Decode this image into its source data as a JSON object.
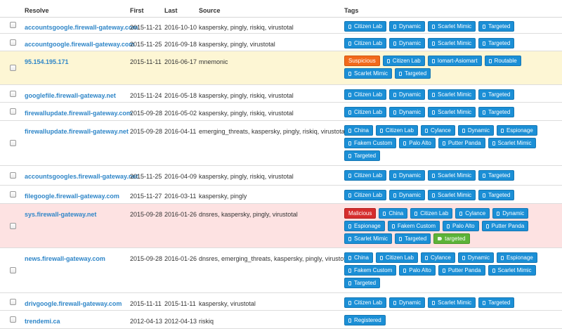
{
  "columns": {
    "resolve": "Resolve",
    "first": "First",
    "last": "Last",
    "source": "Source",
    "tags": "Tags"
  },
  "colors": {
    "tag_blue": "#1b8fd6",
    "malicious": "#d62d2d",
    "suspicious": "#f26a1b",
    "green_tag": "#5cb338",
    "link": "#2f86c8",
    "yellow_row": "#fdf6d4",
    "red_row": "#fde2e2"
  },
  "rows": [
    {
      "resolve": "accountsgoogle.firewall-gateway.com",
      "first": "2015-11-21",
      "last": "2016-10-10",
      "source": "kaspersky, pingly, riskiq, virustotal",
      "highlight": "",
      "tags": [
        {
          "label": "Citizen Lab",
          "kind": "blue"
        },
        {
          "label": "Dynamic",
          "kind": "blue"
        },
        {
          "label": "Scarlet Mimic",
          "kind": "blue"
        },
        {
          "label": "Targeted",
          "kind": "blue"
        }
      ]
    },
    {
      "resolve": "accountgoogle.firewall-gateway.com",
      "first": "2015-11-25",
      "last": "2016-09-18",
      "source": "kaspersky, pingly, virustotal",
      "highlight": "",
      "tags": [
        {
          "label": "Citizen Lab",
          "kind": "blue"
        },
        {
          "label": "Dynamic",
          "kind": "blue"
        },
        {
          "label": "Scarlet Mimic",
          "kind": "blue"
        },
        {
          "label": "Targeted",
          "kind": "blue"
        }
      ]
    },
    {
      "resolve": "95.154.195.171",
      "first": "2015-11-11",
      "last": "2016-06-17",
      "source": "mnemonic",
      "highlight": "yellow",
      "tags": [
        {
          "label": "Suspicious",
          "kind": "orange"
        },
        {
          "label": "Citizen Lab",
          "kind": "blue"
        },
        {
          "label": "Iomart-Asiomart",
          "kind": "blue"
        },
        {
          "label": "Routable",
          "kind": "blue"
        },
        {
          "label": "Scarlet Mimic",
          "kind": "blue"
        },
        {
          "label": "Targeted",
          "kind": "blue"
        }
      ]
    },
    {
      "resolve": "googlefile.firewall-gateway.net",
      "first": "2015-11-24",
      "last": "2016-05-18",
      "source": "kaspersky, pingly, riskiq, virustotal",
      "highlight": "",
      "tags": [
        {
          "label": "Citizen Lab",
          "kind": "blue"
        },
        {
          "label": "Dynamic",
          "kind": "blue"
        },
        {
          "label": "Scarlet Mimic",
          "kind": "blue"
        },
        {
          "label": "Targeted",
          "kind": "blue"
        }
      ]
    },
    {
      "resolve": "firewallupdate.firewall-gateway.com",
      "first": "2015-09-28",
      "last": "2016-05-02",
      "source": "kaspersky, pingly, riskiq, virustotal",
      "highlight": "",
      "tags": [
        {
          "label": "Citizen Lab",
          "kind": "blue"
        },
        {
          "label": "Dynamic",
          "kind": "blue"
        },
        {
          "label": "Scarlet Mimic",
          "kind": "blue"
        },
        {
          "label": "Targeted",
          "kind": "blue"
        }
      ]
    },
    {
      "resolve": "firewallupdate.firewall-gateway.net",
      "first": "2015-09-28",
      "last": "2016-04-11",
      "source": "emerging_threats, kaspersky, pingly, riskiq, virustotal",
      "highlight": "",
      "tags": [
        {
          "label": "China",
          "kind": "blue"
        },
        {
          "label": "Citizen Lab",
          "kind": "blue"
        },
        {
          "label": "Cylance",
          "kind": "blue"
        },
        {
          "label": "Dynamic",
          "kind": "blue"
        },
        {
          "label": "Espionage",
          "kind": "blue"
        },
        {
          "label": "Fakem Custom",
          "kind": "blue"
        },
        {
          "label": "Palo Alto",
          "kind": "blue"
        },
        {
          "label": "Putter Panda",
          "kind": "blue"
        },
        {
          "label": "Scarlet Mimic",
          "kind": "blue"
        },
        {
          "label": "Targeted",
          "kind": "blue"
        }
      ]
    },
    {
      "resolve": "accountsgoogles.firewall-gateway.net",
      "first": "2015-11-25",
      "last": "2016-04-09",
      "source": "kaspersky, pingly, riskiq, virustotal",
      "highlight": "",
      "tags": [
        {
          "label": "Citizen Lab",
          "kind": "blue"
        },
        {
          "label": "Dynamic",
          "kind": "blue"
        },
        {
          "label": "Scarlet Mimic",
          "kind": "blue"
        },
        {
          "label": "Targeted",
          "kind": "blue"
        }
      ]
    },
    {
      "resolve": "filegoogle.firewall-gateway.com",
      "first": "2015-11-27",
      "last": "2016-03-11",
      "source": "kaspersky, pingly",
      "highlight": "",
      "tags": [
        {
          "label": "Citizen Lab",
          "kind": "blue"
        },
        {
          "label": "Dynamic",
          "kind": "blue"
        },
        {
          "label": "Scarlet Mimic",
          "kind": "blue"
        },
        {
          "label": "Targeted",
          "kind": "blue"
        }
      ]
    },
    {
      "resolve": "sys.firewall-gateway.net",
      "first": "2015-09-28",
      "last": "2016-01-26",
      "source": "dnsres, kaspersky, pingly, virustotal",
      "highlight": "red",
      "tags": [
        {
          "label": "Malicious",
          "kind": "red"
        },
        {
          "label": "China",
          "kind": "blue"
        },
        {
          "label": "Citizen Lab",
          "kind": "blue"
        },
        {
          "label": "Cylance",
          "kind": "blue"
        },
        {
          "label": "Dynamic",
          "kind": "blue"
        },
        {
          "label": "Espionage",
          "kind": "blue"
        },
        {
          "label": "Fakem Custom",
          "kind": "blue"
        },
        {
          "label": "Palo Alto",
          "kind": "blue"
        },
        {
          "label": "Putter Panda",
          "kind": "blue"
        },
        {
          "label": "Scarlet Mimic",
          "kind": "blue"
        },
        {
          "label": "Targeted",
          "kind": "blue"
        },
        {
          "label": "targeted",
          "kind": "green"
        }
      ]
    },
    {
      "resolve": "news.firewall-gateway.com",
      "first": "2015-09-28",
      "last": "2016-01-26",
      "source": "dnsres, emerging_threats, kaspersky, pingly, virustotal",
      "highlight": "",
      "tags": [
        {
          "label": "China",
          "kind": "blue"
        },
        {
          "label": "Citizen Lab",
          "kind": "blue"
        },
        {
          "label": "Cylance",
          "kind": "blue"
        },
        {
          "label": "Dynamic",
          "kind": "blue"
        },
        {
          "label": "Espionage",
          "kind": "blue"
        },
        {
          "label": "Fakem Custom",
          "kind": "blue"
        },
        {
          "label": "Palo Alto",
          "kind": "blue"
        },
        {
          "label": "Putter Panda",
          "kind": "blue"
        },
        {
          "label": "Scarlet Mimic",
          "kind": "blue"
        },
        {
          "label": "Targeted",
          "kind": "blue"
        }
      ]
    },
    {
      "resolve": "drivgoogle.firewall-gateway.com",
      "first": "2015-11-11",
      "last": "2015-11-11",
      "source": "kaspersky, virustotal",
      "highlight": "",
      "tags": [
        {
          "label": "Citizen Lab",
          "kind": "blue"
        },
        {
          "label": "Dynamic",
          "kind": "blue"
        },
        {
          "label": "Scarlet Mimic",
          "kind": "blue"
        },
        {
          "label": "Targeted",
          "kind": "blue"
        }
      ]
    },
    {
      "resolve": "trendemi.ca",
      "first": "2012-04-13",
      "last": "2012-04-13",
      "source": "riskiq",
      "highlight": "",
      "tags": [
        {
          "label": "Registered",
          "kind": "blue"
        }
      ]
    }
  ]
}
